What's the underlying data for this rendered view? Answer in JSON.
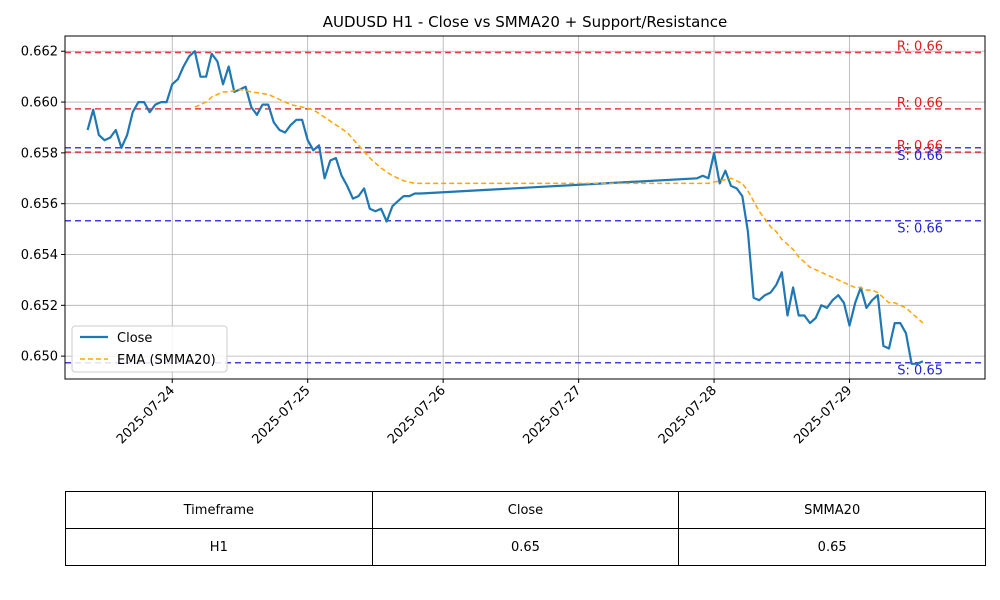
{
  "chart_data": {
    "type": "line",
    "title": "AUDUSD H1 - Close vs SMMA20 + Support/Resistance",
    "xlabel": "",
    "ylabel": "",
    "xlim": [
      "2025-07-23T05:00",
      "2025-07-30T00:00"
    ],
    "ylim": [
      0.6491,
      0.6626
    ],
    "x_ticks": [
      "2025-07-24",
      "2025-07-25",
      "2025-07-26",
      "2025-07-27",
      "2025-07-28",
      "2025-07-29"
    ],
    "y_ticks": [
      "0.650",
      "0.652",
      "0.654",
      "0.656",
      "0.658",
      "0.660",
      "0.662"
    ],
    "grid": true,
    "legend_position": "lower-left",
    "series": [
      {
        "name": "Close",
        "style": "solid",
        "color": "#1f77b4",
        "points": [
          [
            "2025-07-23T09:00",
            0.6589
          ],
          [
            "2025-07-23T10:00",
            0.6597
          ],
          [
            "2025-07-23T11:00",
            0.6587
          ],
          [
            "2025-07-23T12:00",
            0.6585
          ],
          [
            "2025-07-23T13:00",
            0.6586
          ],
          [
            "2025-07-23T14:00",
            0.6589
          ],
          [
            "2025-07-23T15:00",
            0.6582
          ],
          [
            "2025-07-23T16:00",
            0.6587
          ],
          [
            "2025-07-23T17:00",
            0.6596
          ],
          [
            "2025-07-23T18:00",
            0.66
          ],
          [
            "2025-07-23T19:00",
            0.66
          ],
          [
            "2025-07-23T20:00",
            0.6596
          ],
          [
            "2025-07-23T21:00",
            0.6599
          ],
          [
            "2025-07-23T22:00",
            0.66
          ],
          [
            "2025-07-23T23:00",
            0.66
          ],
          [
            "2025-07-24T00:00",
            0.6607
          ],
          [
            "2025-07-24T01:00",
            0.6609
          ],
          [
            "2025-07-24T02:00",
            0.6614
          ],
          [
            "2025-07-24T03:00",
            0.6618
          ],
          [
            "2025-07-24T04:00",
            0.662
          ],
          [
            "2025-07-24T05:00",
            0.661
          ],
          [
            "2025-07-24T06:00",
            0.661
          ],
          [
            "2025-07-24T07:00",
            0.6619
          ],
          [
            "2025-07-24T08:00",
            0.6616
          ],
          [
            "2025-07-24T09:00",
            0.6607
          ],
          [
            "2025-07-24T10:00",
            0.6614
          ],
          [
            "2025-07-24T11:00",
            0.6604
          ],
          [
            "2025-07-24T12:00",
            0.6605
          ],
          [
            "2025-07-24T13:00",
            0.6606
          ],
          [
            "2025-07-24T14:00",
            0.6598
          ],
          [
            "2025-07-24T15:00",
            0.6595
          ],
          [
            "2025-07-24T16:00",
            0.6599
          ],
          [
            "2025-07-24T17:00",
            0.6599
          ],
          [
            "2025-07-24T18:00",
            0.6592
          ],
          [
            "2025-07-24T19:00",
            0.6589
          ],
          [
            "2025-07-24T20:00",
            0.6588
          ],
          [
            "2025-07-24T21:00",
            0.6591
          ],
          [
            "2025-07-24T22:00",
            0.6593
          ],
          [
            "2025-07-24T23:00",
            0.6593
          ],
          [
            "2025-07-25T00:00",
            0.6585
          ],
          [
            "2025-07-25T01:00",
            0.6581
          ],
          [
            "2025-07-25T02:00",
            0.6583
          ],
          [
            "2025-07-25T03:00",
            0.657
          ],
          [
            "2025-07-25T04:00",
            0.6577
          ],
          [
            "2025-07-25T05:00",
            0.6578
          ],
          [
            "2025-07-25T06:00",
            0.6571
          ],
          [
            "2025-07-25T07:00",
            0.6567
          ],
          [
            "2025-07-25T08:00",
            0.6562
          ],
          [
            "2025-07-25T09:00",
            0.6563
          ],
          [
            "2025-07-25T10:00",
            0.6566
          ],
          [
            "2025-07-25T11:00",
            0.6558
          ],
          [
            "2025-07-25T12:00",
            0.6557
          ],
          [
            "2025-07-25T13:00",
            0.6558
          ],
          [
            "2025-07-25T14:00",
            0.6553
          ],
          [
            "2025-07-25T15:00",
            0.6559
          ],
          [
            "2025-07-25T16:00",
            0.6561
          ],
          [
            "2025-07-25T17:00",
            0.6563
          ],
          [
            "2025-07-25T18:00",
            0.6563
          ],
          [
            "2025-07-25T19:00",
            0.6564
          ],
          [
            "2025-07-25T20:00",
            0.6564
          ],
          [
            "2025-07-27T21:00",
            0.657
          ],
          [
            "2025-07-27T22:00",
            0.6571
          ],
          [
            "2025-07-27T23:00",
            0.657
          ],
          [
            "2025-07-28T00:00",
            0.658
          ],
          [
            "2025-07-28T01:00",
            0.6568
          ],
          [
            "2025-07-28T02:00",
            0.6573
          ],
          [
            "2025-07-28T03:00",
            0.6567
          ],
          [
            "2025-07-28T04:00",
            0.6566
          ],
          [
            "2025-07-28T05:00",
            0.6563
          ],
          [
            "2025-07-28T06:00",
            0.6549
          ],
          [
            "2025-07-28T07:00",
            0.6523
          ],
          [
            "2025-07-28T08:00",
            0.6522
          ],
          [
            "2025-07-28T09:00",
            0.6524
          ],
          [
            "2025-07-28T10:00",
            0.6525
          ],
          [
            "2025-07-28T11:00",
            0.6528
          ],
          [
            "2025-07-28T12:00",
            0.6533
          ],
          [
            "2025-07-28T13:00",
            0.6516
          ],
          [
            "2025-07-28T14:00",
            0.6527
          ],
          [
            "2025-07-28T15:00",
            0.6516
          ],
          [
            "2025-07-28T16:00",
            0.6516
          ],
          [
            "2025-07-28T17:00",
            0.6513
          ],
          [
            "2025-07-28T18:00",
            0.6515
          ],
          [
            "2025-07-28T19:00",
            0.652
          ],
          [
            "2025-07-28T20:00",
            0.6519
          ],
          [
            "2025-07-28T21:00",
            0.6522
          ],
          [
            "2025-07-28T22:00",
            0.6524
          ],
          [
            "2025-07-28T23:00",
            0.6521
          ],
          [
            "2025-07-29T00:00",
            0.6512
          ],
          [
            "2025-07-29T01:00",
            0.6521
          ],
          [
            "2025-07-29T02:00",
            0.6527
          ],
          [
            "2025-07-29T03:00",
            0.6519
          ],
          [
            "2025-07-29T04:00",
            0.6522
          ],
          [
            "2025-07-29T05:00",
            0.6524
          ],
          [
            "2025-07-29T06:00",
            0.6504
          ],
          [
            "2025-07-29T07:00",
            0.6503
          ],
          [
            "2025-07-29T08:00",
            0.6513
          ],
          [
            "2025-07-29T09:00",
            0.6513
          ],
          [
            "2025-07-29T10:00",
            0.6509
          ],
          [
            "2025-07-29T11:00",
            0.6497
          ],
          [
            "2025-07-29T12:00",
            0.6497
          ],
          [
            "2025-07-29T13:00",
            0.6498
          ]
        ]
      },
      {
        "name": "EMA (SMMA20)",
        "style": "dashed",
        "color": "#ffa500",
        "points": [
          [
            "2025-07-24T04:00",
            0.6598
          ],
          [
            "2025-07-24T05:00",
            0.6599
          ],
          [
            "2025-07-24T06:00",
            0.66
          ],
          [
            "2025-07-24T07:00",
            0.6602
          ],
          [
            "2025-07-24T08:00",
            0.6603
          ],
          [
            "2025-07-24T09:00",
            0.6604
          ],
          [
            "2025-07-24T10:00",
            0.6604
          ],
          [
            "2025-07-24T12:00",
            0.6605
          ],
          [
            "2025-07-24T14:00",
            0.6604
          ],
          [
            "2025-07-24T17:00",
            0.6603
          ],
          [
            "2025-07-24T19:00",
            0.6601
          ],
          [
            "2025-07-24T21:00",
            0.6599
          ],
          [
            "2025-07-24T23:00",
            0.6598
          ],
          [
            "2025-07-25T01:00",
            0.6597
          ],
          [
            "2025-07-25T03:00",
            0.6594
          ],
          [
            "2025-07-25T05:00",
            0.6591
          ],
          [
            "2025-07-25T07:00",
            0.6588
          ],
          [
            "2025-07-25T09:00",
            0.6583
          ],
          [
            "2025-07-25T11:00",
            0.6578
          ],
          [
            "2025-07-25T13:00",
            0.6574
          ],
          [
            "2025-07-25T15:00",
            0.6571
          ],
          [
            "2025-07-25T17:00",
            0.6569
          ],
          [
            "2025-07-25T19:00",
            0.6568
          ],
          [
            "2025-07-25T20:00",
            0.6568
          ],
          [
            "2025-07-27T21:00",
            0.6568
          ],
          [
            "2025-07-27T23:00",
            0.6568
          ],
          [
            "2025-07-28T01:00",
            0.6569
          ],
          [
            "2025-07-28T03:00",
            0.657
          ],
          [
            "2025-07-28T04:00",
            0.6569
          ],
          [
            "2025-07-28T05:00",
            0.6568
          ],
          [
            "2025-07-28T06:00",
            0.6565
          ],
          [
            "2025-07-28T07:00",
            0.6561
          ],
          [
            "2025-07-28T08:00",
            0.6557
          ],
          [
            "2025-07-28T09:00",
            0.6554
          ],
          [
            "2025-07-28T10:00",
            0.6551
          ],
          [
            "2025-07-28T11:00",
            0.6549
          ],
          [
            "2025-07-28T12:00",
            0.6546
          ],
          [
            "2025-07-28T13:00",
            0.6544
          ],
          [
            "2025-07-28T14:00",
            0.6542
          ],
          [
            "2025-07-28T15:00",
            0.6539
          ],
          [
            "2025-07-28T16:00",
            0.6537
          ],
          [
            "2025-07-28T17:00",
            0.6535
          ],
          [
            "2025-07-28T18:00",
            0.6534
          ],
          [
            "2025-07-28T19:00",
            0.6533
          ],
          [
            "2025-07-28T20:00",
            0.6532
          ],
          [
            "2025-07-28T22:00",
            0.653
          ],
          [
            "2025-07-28T23:00",
            0.6529
          ],
          [
            "2025-07-29T00:00",
            0.6528
          ],
          [
            "2025-07-29T01:00",
            0.6527
          ],
          [
            "2025-07-29T02:00",
            0.6527
          ],
          [
            "2025-07-29T03:00",
            0.6526
          ],
          [
            "2025-07-29T04:00",
            0.6526
          ],
          [
            "2025-07-29T05:00",
            0.6525
          ],
          [
            "2025-07-29T06:00",
            0.6523
          ],
          [
            "2025-07-29T07:00",
            0.6521
          ],
          [
            "2025-07-29T08:00",
            0.6521
          ],
          [
            "2025-07-29T09:00",
            0.652
          ],
          [
            "2025-07-29T10:00",
            0.6519
          ],
          [
            "2025-07-29T11:00",
            0.6517
          ],
          [
            "2025-07-29T12:00",
            0.6515
          ],
          [
            "2025-07-29T13:00",
            0.6513
          ]
        ]
      }
    ],
    "levels": [
      {
        "kind": "resistance",
        "value": 0.66195,
        "label": "R: 0.66",
        "color": "#e31a1c"
      },
      {
        "kind": "resistance",
        "value": 0.65973,
        "label": "R: 0.66",
        "color": "#e31a1c"
      },
      {
        "kind": "resistance",
        "value": 0.65803,
        "label": "R: 0.66",
        "color": "#e31a1c"
      },
      {
        "kind": "support",
        "value": 0.6582,
        "label": "S: 0.66",
        "color": "#1f1fe0"
      },
      {
        "kind": "support",
        "value": 0.65533,
        "label": "S: 0.66",
        "color": "#1f1fe0"
      },
      {
        "kind": "support",
        "value": 0.64974,
        "label": "S: 0.65",
        "color": "#1f1fe0"
      }
    ]
  },
  "table": {
    "headers": [
      "Timeframe",
      "Close",
      "SMMA20"
    ],
    "rows": [
      [
        "H1",
        "0.65",
        "0.65"
      ]
    ]
  }
}
